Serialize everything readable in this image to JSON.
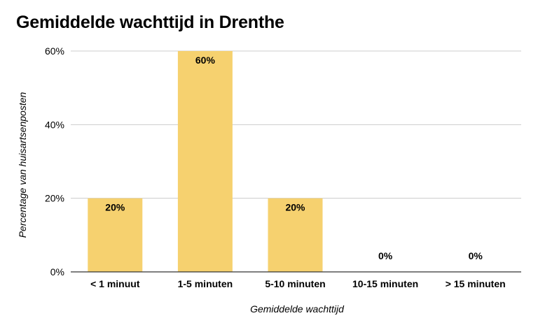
{
  "chart_data": {
    "type": "bar",
    "title": "Gemiddelde wachttijd in Drenthe",
    "xlabel": "Gemiddelde wachttijd",
    "ylabel": "Percentage van huisartsenposten",
    "categories": [
      "< 1 minuut",
      "1-5 minuten",
      "5-10 minuten",
      "10-15 minuten",
      "> 15 minuten"
    ],
    "values": [
      20,
      60,
      20,
      0,
      0
    ],
    "data_labels": [
      "20%",
      "60%",
      "20%",
      "0%",
      "0%"
    ],
    "ylim": [
      0,
      60
    ],
    "yticks": [
      0,
      20,
      40,
      60
    ],
    "ytick_labels": [
      "0%",
      "20%",
      "40%",
      "60%"
    ],
    "grid": true,
    "bar_color": "#F6D16F",
    "grid_color": "#CCCCCC"
  }
}
